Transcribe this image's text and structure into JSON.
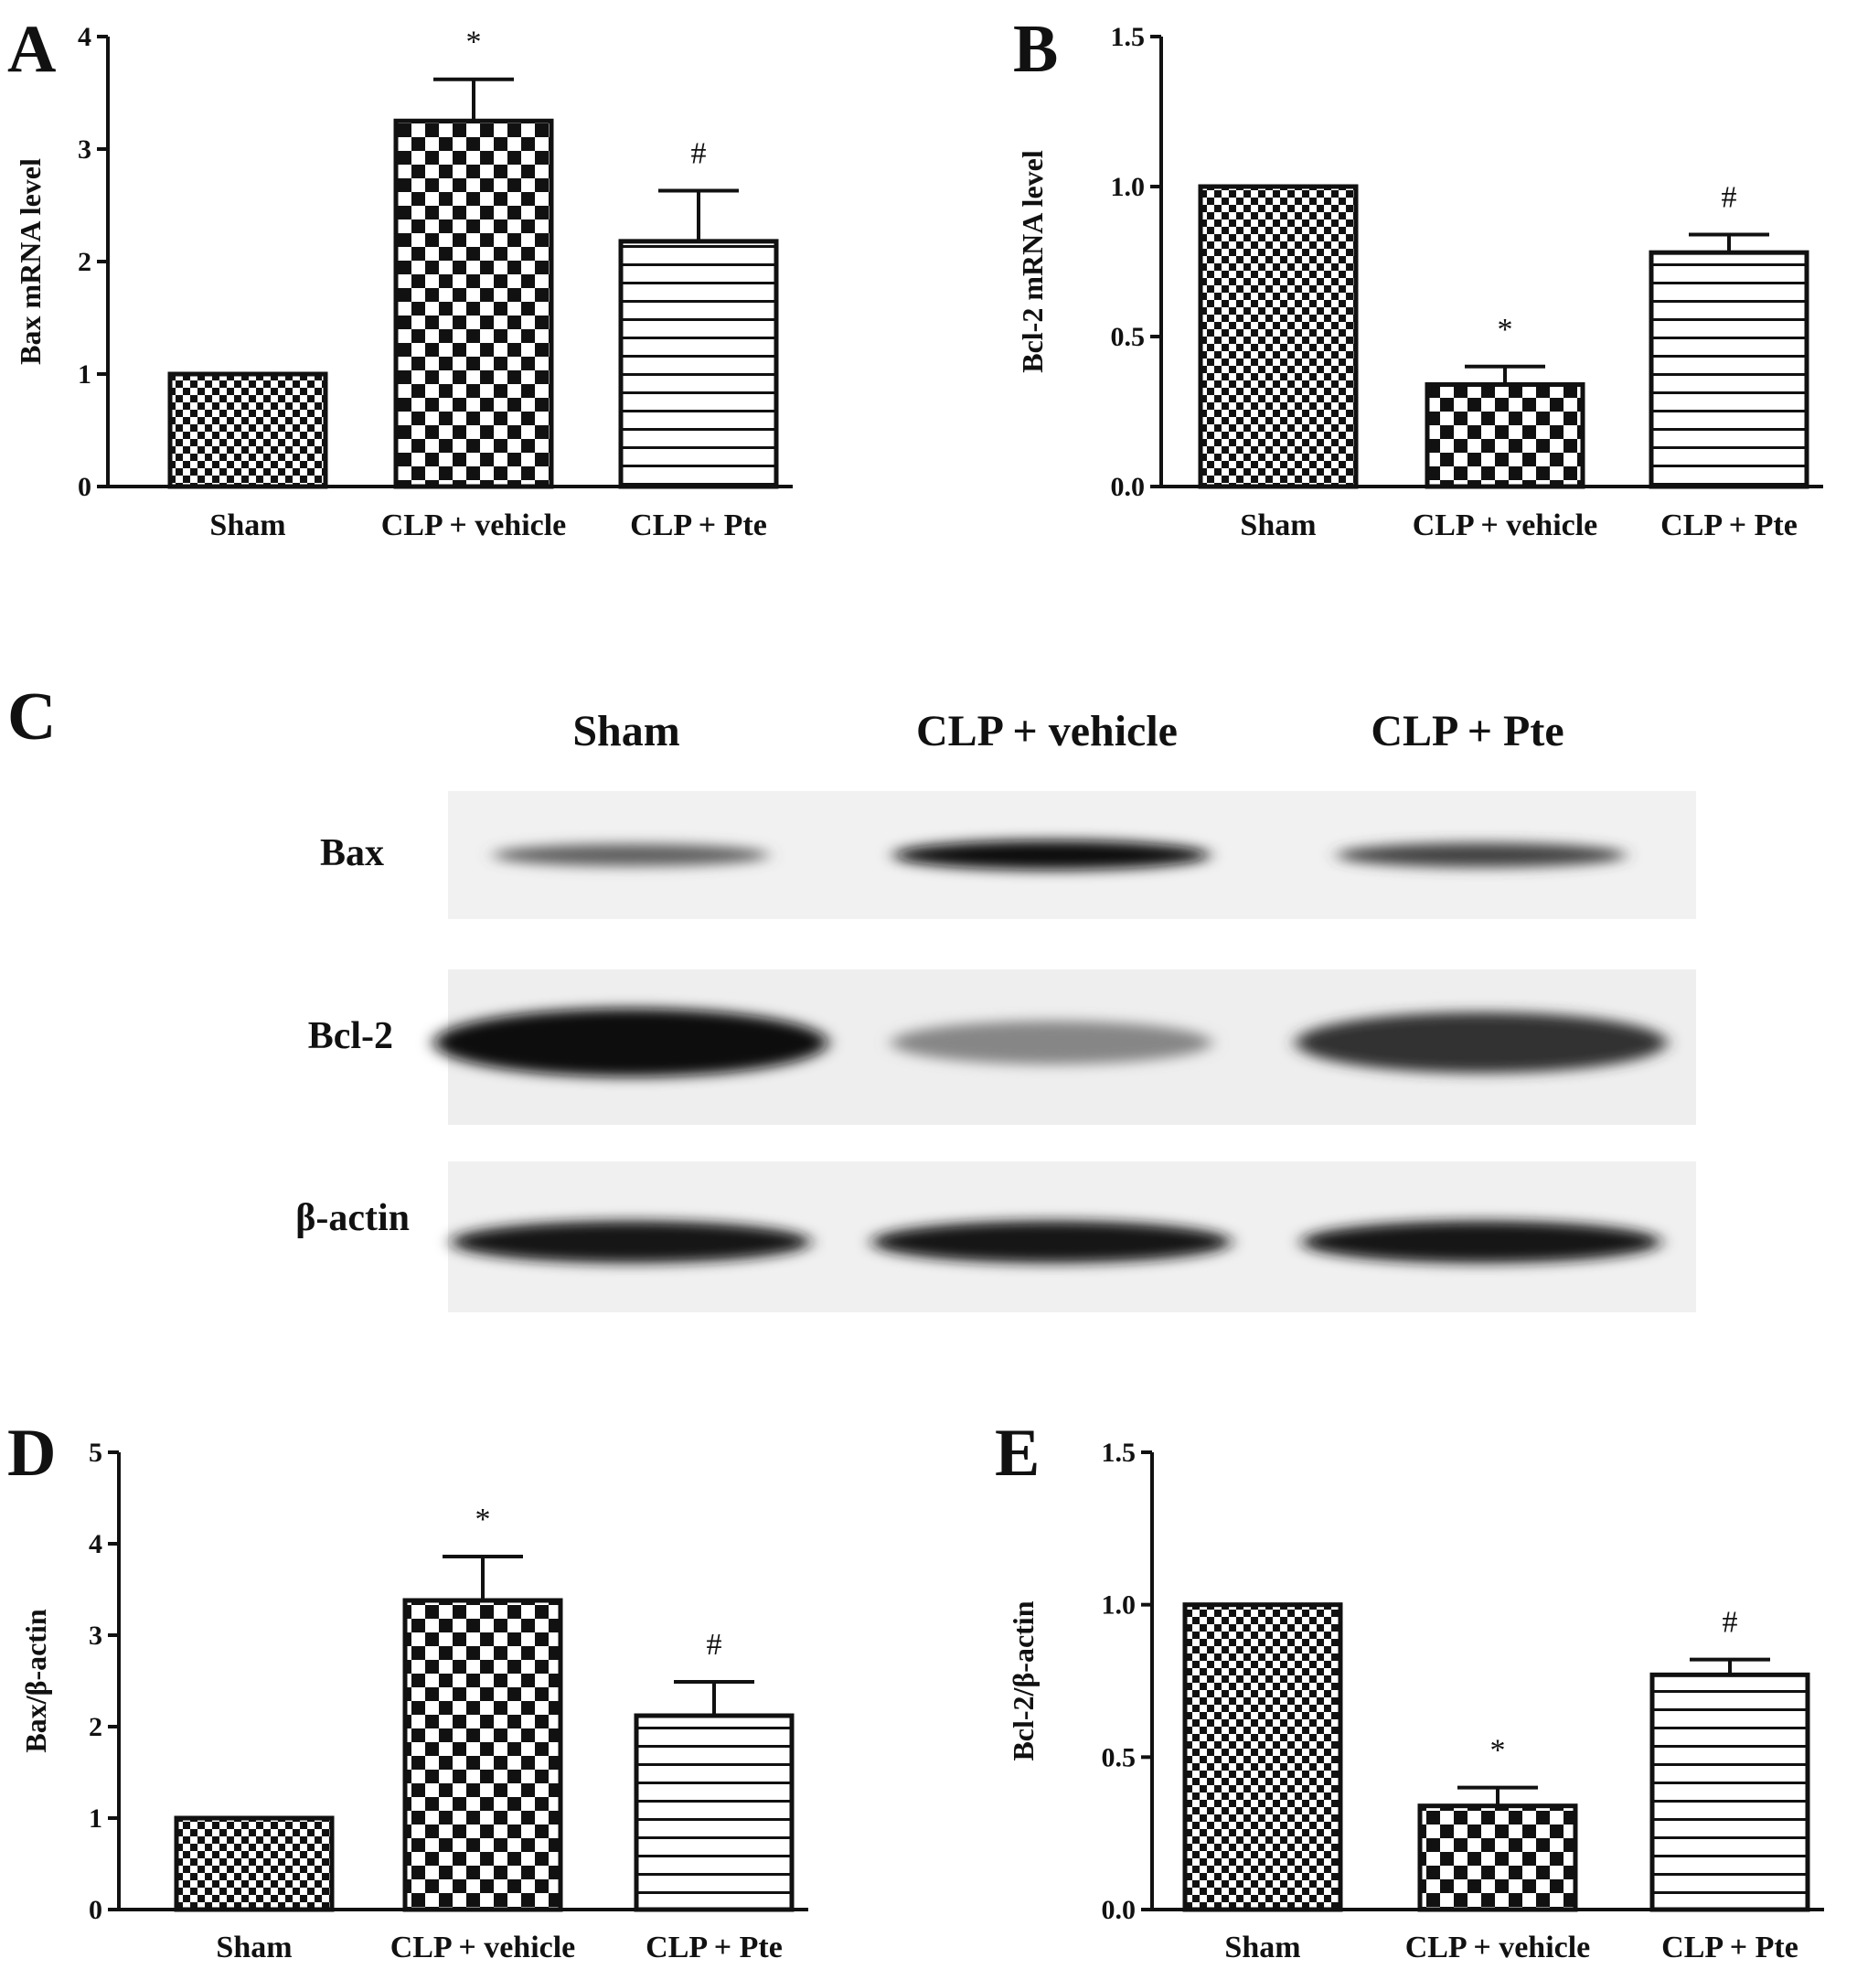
{
  "figure": {
    "panel_labels": [
      "A",
      "B",
      "C",
      "D",
      "E"
    ]
  },
  "blot": {
    "lanes": [
      "Sham",
      "CLP + vehicle",
      "CLP + Pte"
    ],
    "rows": [
      {
        "label": "Bax",
        "intensity": [
          0.55,
          1.0,
          0.7
        ]
      },
      {
        "label": "Bcl-2",
        "intensity": [
          1.0,
          0.35,
          0.8
        ]
      },
      {
        "label": "β-actin",
        "intensity": [
          0.95,
          0.95,
          0.95
        ]
      }
    ]
  },
  "chart_data": [
    {
      "panel": "A",
      "type": "bar",
      "categories": [
        "Sham",
        "CLP + vehicle",
        "CLP + Pte"
      ],
      "values": [
        1.0,
        3.25,
        2.18
      ],
      "errors": [
        0,
        0.37,
        0.45
      ],
      "annotations": [
        "",
        "*",
        "#"
      ],
      "patterns": [
        "fine-check",
        "coarse-check",
        "hstripe"
      ],
      "ylabel": "Bax mRNA level",
      "ylim": [
        0,
        4
      ],
      "yticks": [
        0,
        1,
        2,
        3,
        4
      ],
      "ytick_labels": [
        "0",
        "1",
        "2",
        "3",
        "4"
      ]
    },
    {
      "panel": "B",
      "type": "bar",
      "categories": [
        "Sham",
        "CLP + vehicle",
        "CLP + Pte"
      ],
      "values": [
        1.0,
        0.34,
        0.78
      ],
      "errors": [
        0,
        0.06,
        0.06
      ],
      "annotations": [
        "",
        "*",
        "#"
      ],
      "patterns": [
        "fine-check",
        "coarse-check",
        "hstripe"
      ],
      "ylabel": "Bcl-2 mRNA level",
      "ylim": [
        0,
        1.5
      ],
      "yticks": [
        0,
        0.5,
        1.0,
        1.5
      ],
      "ytick_labels": [
        "0.0",
        "0.5",
        "1.0",
        "1.5"
      ]
    },
    {
      "panel": "D",
      "type": "bar",
      "categories": [
        "Sham",
        "CLP + vehicle",
        "CLP + Pte"
      ],
      "values": [
        1.0,
        3.38,
        2.12
      ],
      "errors": [
        0,
        0.48,
        0.37
      ],
      "annotations": [
        "",
        "*",
        "#"
      ],
      "patterns": [
        "fine-check",
        "coarse-check",
        "hstripe"
      ],
      "ylabel": "Bax/β-actin",
      "ylim": [
        0,
        5
      ],
      "yticks": [
        0,
        1,
        2,
        3,
        4,
        5
      ],
      "ytick_labels": [
        "0",
        "1",
        "2",
        "3",
        "4",
        "5"
      ]
    },
    {
      "panel": "E",
      "type": "bar",
      "categories": [
        "Sham",
        "CLP + vehicle",
        "CLP + Pte"
      ],
      "values": [
        1.0,
        0.34,
        0.77
      ],
      "errors": [
        0,
        0.06,
        0.05
      ],
      "annotations": [
        "",
        "*",
        "#"
      ],
      "patterns": [
        "fine-check",
        "coarse-check",
        "hstripe"
      ],
      "ylabel": "Bcl-2/β-actin",
      "ylim": [
        0,
        1.5
      ],
      "yticks": [
        0,
        0.5,
        1.0,
        1.5
      ],
      "ytick_labels": [
        "0.0",
        "0.5",
        "1.0",
        "1.5"
      ]
    }
  ]
}
